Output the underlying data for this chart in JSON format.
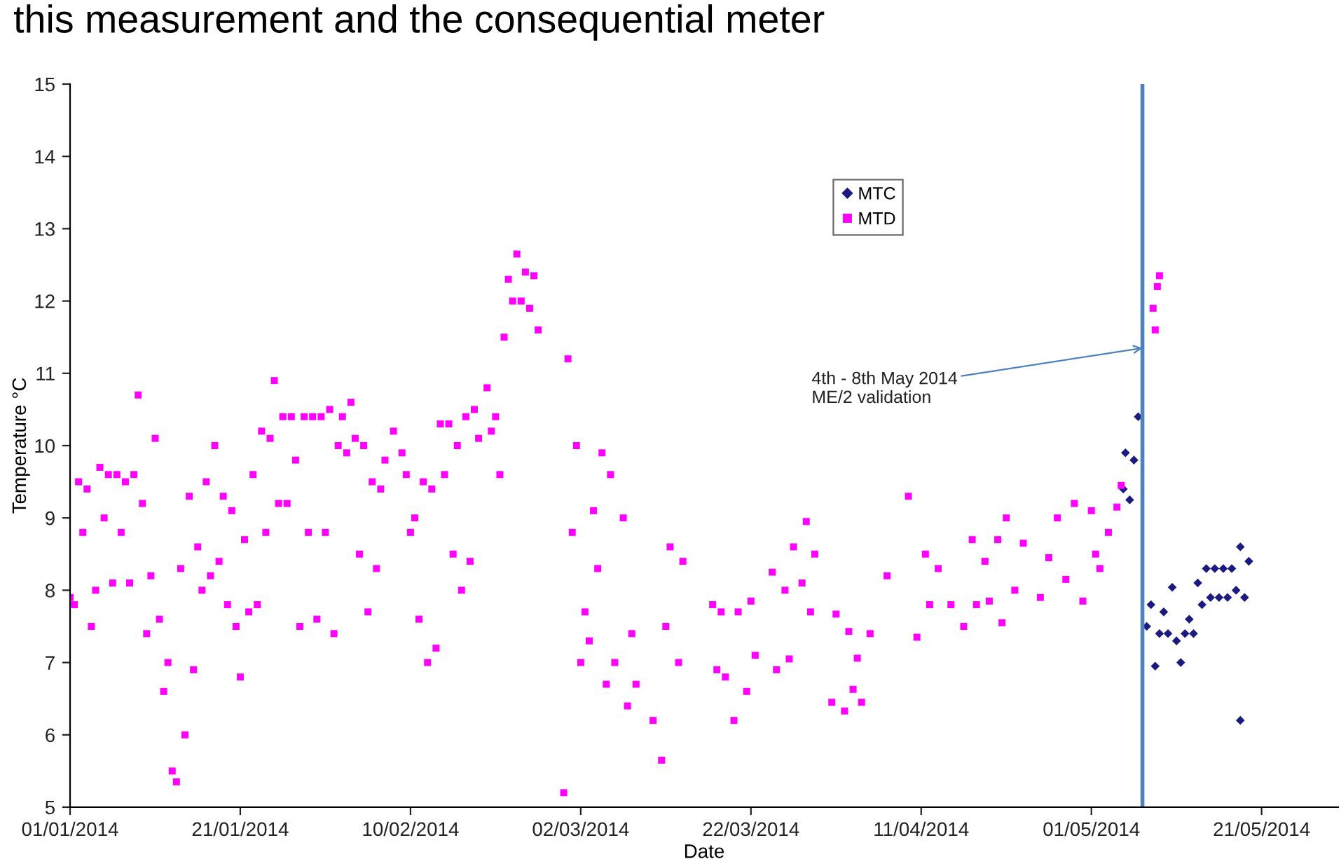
{
  "chart_data": {
    "type": "scatter",
    "title": "this measurement and the consequential meter",
    "xlabel": "Date",
    "ylabel": "Temperature °C",
    "xlim": [
      "2014-01-01",
      "2014-05-30"
    ],
    "ylim": [
      5,
      15
    ],
    "xticks": [
      {
        "value": "2014-01-01",
        "label": "01/01/2014"
      },
      {
        "value": "2014-01-21",
        "label": "21/01/2014"
      },
      {
        "value": "2014-02-10",
        "label": "10/02/2014"
      },
      {
        "value": "2014-03-02",
        "label": "02/03/2014"
      },
      {
        "value": "2014-03-22",
        "label": "22/03/2014"
      },
      {
        "value": "2014-04-11",
        "label": "11/04/2014"
      },
      {
        "value": "2014-05-01",
        "label": "01/05/2014"
      },
      {
        "value": "2014-05-21",
        "label": "21/05/2014"
      }
    ],
    "yticks": [
      5,
      6,
      7,
      8,
      9,
      10,
      11,
      12,
      13,
      14,
      15
    ],
    "grid": false,
    "legend": "top",
    "ref_lines": [
      {
        "axis": "x",
        "value": "2014-05-07",
        "color": "#4f81bd"
      }
    ],
    "annotations": [
      {
        "text": "4th - 8th May 2014\nME/2 validation",
        "x": "2014-05-07",
        "y": 11.35
      }
    ],
    "series": [
      {
        "name": "MTC",
        "color": "#1a1a80",
        "marker": "diamond",
        "x": [
          "2014-05-04T18:00",
          "2014-05-05",
          "2014-05-05T12:00",
          "2014-05-06",
          "2014-05-06T12:00",
          "2014-05-07T12:00",
          "2014-05-08",
          "2014-05-08T12:00",
          "2014-05-09",
          "2014-05-09T12:00",
          "2014-05-10",
          "2014-05-10T12:00",
          "2014-05-11",
          "2014-05-11T12:00",
          "2014-05-12",
          "2014-05-12T12:00",
          "2014-05-13",
          "2014-05-13T12:00",
          "2014-05-14",
          "2014-05-14T12:00",
          "2014-05-15",
          "2014-05-15T12:00",
          "2014-05-16",
          "2014-05-16T12:00",
          "2014-05-17",
          "2014-05-17T12:00",
          "2014-05-18",
          "2014-05-18T12:00",
          "2014-05-18T12:00",
          "2014-05-19",
          "2014-05-19T12:00"
        ],
        "values": [
          9.4,
          9.9,
          9.25,
          9.8,
          10.4,
          7.5,
          7.8,
          6.95,
          7.4,
          7.7,
          7.4,
          8.04,
          7.3,
          7.0,
          7.4,
          7.6,
          7.4,
          8.1,
          7.8,
          8.3,
          7.9,
          8.3,
          7.9,
          8.3,
          7.9,
          8.3,
          8.0,
          8.6,
          6.2,
          7.9,
          8.4
        ]
      },
      {
        "name": "MTD",
        "color": "#ff00ff",
        "marker": "square",
        "x": [
          "2014-01-01",
          "2014-01-01T12:00",
          "2014-01-02",
          "2014-01-02T12:00",
          "2014-01-03",
          "2014-01-03T12:00",
          "2014-01-04",
          "2014-01-04T12:00",
          "2014-01-05",
          "2014-01-05T12:00",
          "2014-01-06",
          "2014-01-06T12:00",
          "2014-01-07",
          "2014-01-07T12:00",
          "2014-01-08",
          "2014-01-08T12:00",
          "2014-01-09",
          "2014-01-09T12:00",
          "2014-01-10",
          "2014-01-10T12:00",
          "2014-01-11",
          "2014-01-11T12:00",
          "2014-01-12",
          "2014-01-12T12:00",
          "2014-01-13",
          "2014-01-13T12:00",
          "2014-01-14",
          "2014-01-14T12:00",
          "2014-01-15",
          "2014-01-15T12:00",
          "2014-01-16",
          "2014-01-16T12:00",
          "2014-01-17",
          "2014-01-17T12:00",
          "2014-01-18",
          "2014-01-18T12:00",
          "2014-01-19",
          "2014-01-19T12:00",
          "2014-01-20",
          "2014-01-20T12:00",
          "2014-01-21",
          "2014-01-21T12:00",
          "2014-01-22",
          "2014-01-22T12:00",
          "2014-01-23",
          "2014-01-23T12:00",
          "2014-01-24",
          "2014-01-24T12:00",
          "2014-01-25",
          "2014-01-25T12:00",
          "2014-01-26",
          "2014-01-26T12:00",
          "2014-01-27",
          "2014-01-27T12:00",
          "2014-01-28",
          "2014-01-28T12:00",
          "2014-01-29",
          "2014-01-29T12:00",
          "2014-01-30",
          "2014-01-30T12:00",
          "2014-01-31",
          "2014-01-31T12:00",
          "2014-02-01",
          "2014-02-01T12:00",
          "2014-02-02",
          "2014-02-02T12:00",
          "2014-02-03",
          "2014-02-03T12:00",
          "2014-02-04",
          "2014-02-04T12:00",
          "2014-02-05",
          "2014-02-05T12:00",
          "2014-02-06",
          "2014-02-06T12:00",
          "2014-02-07",
          "2014-02-08",
          "2014-02-09",
          "2014-02-09T12:00",
          "2014-02-10",
          "2014-02-10T12:00",
          "2014-02-11",
          "2014-02-11T12:00",
          "2014-02-12",
          "2014-02-12T12:00",
          "2014-02-13",
          "2014-02-13T12:00",
          "2014-02-14",
          "2014-02-14T12:00",
          "2014-02-15",
          "2014-02-15T12:00",
          "2014-02-16",
          "2014-02-16T12:00",
          "2014-02-17",
          "2014-02-17T12:00",
          "2014-02-18",
          "2014-02-19",
          "2014-02-19T12:00",
          "2014-02-20",
          "2014-02-20T12:00",
          "2014-02-21",
          "2014-02-21T12:00",
          "2014-02-22",
          "2014-02-22T12:00",
          "2014-02-23",
          "2014-02-23T12:00",
          "2014-02-24",
          "2014-02-24T12:00",
          "2014-02-25",
          "2014-02-28",
          "2014-02-28T12:00",
          "2014-03-01",
          "2014-03-01T12:00",
          "2014-03-02",
          "2014-03-02T12:00",
          "2014-03-03",
          "2014-03-03T12:00",
          "2014-03-04",
          "2014-03-04T12:00",
          "2014-03-05",
          "2014-03-05T12:00",
          "2014-03-06",
          "2014-03-07",
          "2014-03-07T12:00",
          "2014-03-08",
          "2014-03-08T12:00",
          "2014-03-10T12:00",
          "2014-03-11T12:00",
          "2014-03-12",
          "2014-03-12T12:00",
          "2014-03-13T12:00",
          "2014-03-14",
          "2014-03-17T12:00",
          "2014-03-18",
          "2014-03-18T12:00",
          "2014-03-19",
          "2014-03-20",
          "2014-03-20T12:00",
          "2014-03-21T12:00",
          "2014-03-22",
          "2014-03-22T12:00",
          "2014-03-24T12:00",
          "2014-03-25",
          "2014-03-26",
          "2014-03-26T12:00",
          "2014-03-27",
          "2014-03-28",
          "2014-03-28T12:00",
          "2014-03-29",
          "2014-03-29T12:00",
          "2014-03-31T12:00",
          "2014-04-01",
          "2014-04-02",
          "2014-04-02T12:00",
          "2014-04-03",
          "2014-04-03T12:00",
          "2014-04-04",
          "2014-04-05",
          "2014-04-07",
          "2014-04-09T12:00",
          "2014-04-10T12:00",
          "2014-04-11T12:00",
          "2014-04-12",
          "2014-04-13",
          "2014-04-14T12:00",
          "2014-04-16",
          "2014-04-17",
          "2014-04-17T12:00",
          "2014-04-18T12:00",
          "2014-04-19",
          "2014-04-20",
          "2014-04-20T12:00",
          "2014-04-21",
          "2014-04-22",
          "2014-04-23",
          "2014-04-25",
          "2014-04-26",
          "2014-04-27",
          "2014-04-28",
          "2014-04-29",
          "2014-04-30",
          "2014-05-01",
          "2014-05-01T12:00",
          "2014-05-02",
          "2014-05-03",
          "2014-05-04",
          "2014-05-04T12:00",
          "2014-05-08T06:00",
          "2014-05-08T12:00",
          "2014-05-08T18:00",
          "2014-05-09"
        ],
        "values": [
          7.9,
          7.8,
          9.5,
          8.8,
          9.4,
          7.5,
          8.0,
          9.7,
          9.0,
          9.6,
          8.1,
          9.6,
          8.8,
          9.5,
          8.1,
          9.6,
          10.7,
          9.2,
          7.4,
          8.2,
          10.1,
          7.6,
          6.6,
          7.0,
          5.5,
          5.35,
          8.3,
          6.0,
          9.3,
          6.9,
          8.6,
          8.0,
          9.5,
          8.2,
          10.0,
          8.4,
          9.3,
          7.8,
          9.1,
          7.5,
          6.8,
          8.7,
          7.7,
          9.6,
          7.8,
          10.2,
          8.8,
          10.1,
          10.9,
          9.2,
          10.4,
          9.2,
          10.4,
          9.8,
          7.5,
          10.4,
          8.8,
          10.4,
          7.6,
          10.4,
          8.8,
          10.5,
          7.4,
          10.0,
          10.4,
          9.9,
          10.6,
          10.1,
          8.5,
          10.0,
          7.7,
          9.5,
          8.3,
          9.4,
          9.8,
          10.2,
          9.9,
          9.6,
          8.8,
          9.0,
          7.6,
          9.5,
          7.0,
          9.4,
          7.2,
          10.3,
          9.6,
          10.3,
          8.5,
          10.0,
          8.0,
          10.4,
          8.4,
          10.5,
          10.1,
          10.8,
          10.2,
          10.4,
          9.6,
          11.5,
          12.3,
          12.0,
          12.65,
          12.0,
          12.4,
          11.9,
          12.35,
          11.6,
          5.2,
          11.2,
          8.8,
          10.0,
          7.0,
          7.7,
          7.3,
          9.1,
          8.3,
          9.9,
          6.7,
          9.6,
          7.0,
          9.0,
          6.4,
          7.4,
          6.7,
          6.2,
          5.65,
          7.5,
          8.6,
          7.0,
          8.4,
          7.8,
          6.9,
          7.7,
          6.8,
          6.2,
          7.7,
          6.6,
          7.85,
          7.1,
          8.25,
          6.9,
          8.0,
          7.05,
          8.6,
          8.1,
          8.95,
          7.7,
          8.5,
          6.45,
          7.67,
          6.33,
          7.43,
          6.63,
          7.06,
          6.45,
          7.4,
          8.2,
          9.3,
          7.35,
          8.5,
          7.8,
          8.3,
          7.8,
          7.5,
          8.7,
          7.8,
          8.4,
          7.85,
          8.7,
          7.55,
          9.0,
          8.0,
          8.65,
          7.9,
          8.45,
          9.0,
          8.15,
          9.2,
          7.85,
          9.1,
          8.5,
          8.3,
          8.8,
          9.15,
          9.45,
          11.9,
          11.6,
          12.2,
          12.35
        ]
      }
    ]
  }
}
